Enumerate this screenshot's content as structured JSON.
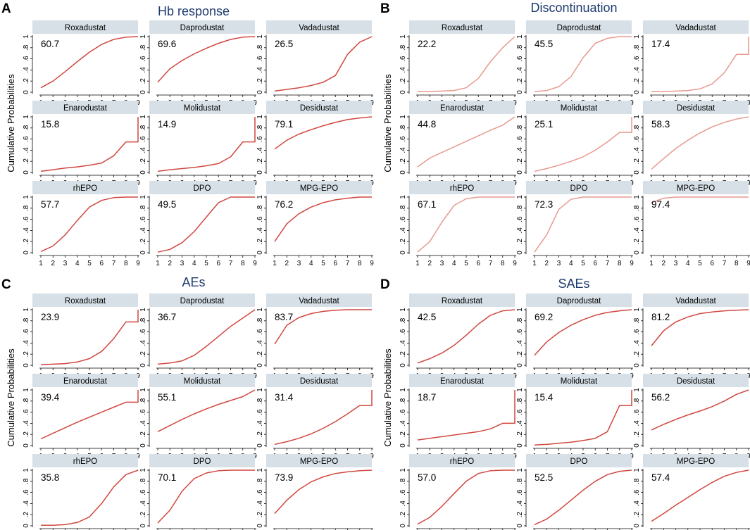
{
  "chart_data": [
    {
      "type": "line",
      "panel_letter": "A",
      "title": "Hb response",
      "ylabel": "Cumulative Probabilities",
      "x": [
        1,
        2,
        3,
        4,
        5,
        6,
        7,
        8,
        9
      ],
      "xticks": [
        "1",
        "2",
        "3",
        "4",
        "5",
        "6",
        "7",
        "8",
        "9"
      ],
      "yticks": [
        "0",
        ".2",
        ".4",
        ".6",
        ".8",
        "1"
      ],
      "ylim": [
        0,
        1
      ],
      "line_color": "#d0473f",
      "series": [
        {
          "name": "Roxadustat",
          "sucra": "60.7",
          "values": [
            0.08,
            0.2,
            0.37,
            0.55,
            0.72,
            0.86,
            0.95,
            0.99,
            1.0
          ]
        },
        {
          "name": "Daprodustat",
          "sucra": "69.6",
          "values": [
            0.18,
            0.42,
            0.57,
            0.69,
            0.79,
            0.88,
            0.95,
            0.99,
            1.0
          ]
        },
        {
          "name": "Vadadustat",
          "sucra": "26.5",
          "values": [
            0.02,
            0.05,
            0.08,
            0.12,
            0.18,
            0.3,
            0.68,
            0.9,
            1.0
          ]
        },
        {
          "name": "Enarodustat",
          "sucra": "15.8",
          "values": [
            0.02,
            0.05,
            0.08,
            0.1,
            0.13,
            0.17,
            0.3,
            0.55,
            1.0
          ]
        },
        {
          "name": "Molidustat",
          "sucra": "14.9",
          "values": [
            0.02,
            0.05,
            0.07,
            0.09,
            0.12,
            0.16,
            0.28,
            0.55,
            1.0
          ]
        },
        {
          "name": "Desidustat",
          "sucra": "79.1",
          "values": [
            0.42,
            0.58,
            0.69,
            0.77,
            0.84,
            0.9,
            0.95,
            0.98,
            1.0
          ]
        },
        {
          "name": "rhEPO",
          "sucra": "57.7",
          "values": [
            0.02,
            0.12,
            0.32,
            0.58,
            0.82,
            0.94,
            0.99,
            1.0,
            1.0
          ]
        },
        {
          "name": "DPO",
          "sucra": "49.5",
          "values": [
            0.01,
            0.06,
            0.18,
            0.38,
            0.64,
            0.9,
            1.0,
            1.0,
            1.0
          ]
        },
        {
          "name": "MPG-EPO",
          "sucra": "76.2",
          "values": [
            0.2,
            0.52,
            0.7,
            0.82,
            0.9,
            0.95,
            0.98,
            1.0,
            1.0
          ]
        }
      ]
    },
    {
      "type": "line",
      "panel_letter": "B",
      "title": "Discontinuation",
      "ylabel": "Cumulative Probabilities",
      "x": [
        1,
        2,
        3,
        4,
        5,
        6,
        7,
        8,
        9
      ],
      "xticks": [
        "1",
        "2",
        "3",
        "4",
        "5",
        "6",
        "7",
        "8",
        "9"
      ],
      "yticks": [
        "0",
        ".2",
        ".4",
        ".6",
        ".8",
        "1"
      ],
      "ylim": [
        0,
        1
      ],
      "line_color": "#e79a8f",
      "series": [
        {
          "name": "Roxadustat",
          "sucra": "22.2",
          "values": [
            0.01,
            0.01,
            0.02,
            0.03,
            0.08,
            0.25,
            0.55,
            0.8,
            1.0
          ]
        },
        {
          "name": "Daprodustat",
          "sucra": "45.5",
          "values": [
            0.01,
            0.03,
            0.1,
            0.28,
            0.62,
            0.88,
            0.97,
            1.0,
            1.0
          ]
        },
        {
          "name": "Vadadustat",
          "sucra": "17.4",
          "values": [
            0.01,
            0.01,
            0.02,
            0.03,
            0.06,
            0.15,
            0.35,
            0.68,
            1.0
          ]
        },
        {
          "name": "Enarodustat",
          "sucra": "44.8",
          "values": [
            0.1,
            0.26,
            0.36,
            0.46,
            0.56,
            0.66,
            0.76,
            0.85,
            1.0
          ]
        },
        {
          "name": "Molidustat",
          "sucra": "25.1",
          "values": [
            0.02,
            0.07,
            0.13,
            0.2,
            0.28,
            0.4,
            0.55,
            0.72,
            1.0
          ]
        },
        {
          "name": "Desidustat",
          "sucra": "58.3",
          "values": [
            0.06,
            0.25,
            0.43,
            0.58,
            0.71,
            0.82,
            0.9,
            0.96,
            1.0
          ]
        },
        {
          "name": "rhEPO",
          "sucra": "67.1",
          "values": [
            0.01,
            0.2,
            0.55,
            0.85,
            0.97,
            1.0,
            1.0,
            1.0,
            1.0
          ]
        },
        {
          "name": "DPO",
          "sucra": "72.3",
          "values": [
            0.01,
            0.32,
            0.78,
            0.96,
            1.0,
            1.0,
            1.0,
            1.0,
            1.0
          ]
        },
        {
          "name": "MPG-EPO",
          "sucra": "97.4",
          "values": [
            0.9,
            0.98,
            1.0,
            1.0,
            1.0,
            1.0,
            1.0,
            1.0,
            1.0
          ]
        }
      ]
    },
    {
      "type": "line",
      "panel_letter": "C",
      "title": "AEs",
      "ylabel": "Cumulative Probabilities",
      "x": [
        1,
        2,
        3,
        4,
        5,
        6,
        7,
        8,
        9
      ],
      "xticks": [
        "1",
        "2",
        "3",
        "4",
        "5",
        "6",
        "7",
        "8",
        "9"
      ],
      "yticks": [
        "0",
        ".2",
        ".4",
        ".6",
        ".8",
        "1"
      ],
      "ylim": [
        0,
        1
      ],
      "line_color": "#d0473f",
      "series": [
        {
          "name": "Roxadustat",
          "sucra": "23.9",
          "values": [
            0.01,
            0.02,
            0.03,
            0.06,
            0.12,
            0.25,
            0.48,
            0.78,
            1.0
          ]
        },
        {
          "name": "Daprodustat",
          "sucra": "36.7",
          "values": [
            0.02,
            0.04,
            0.08,
            0.18,
            0.34,
            0.52,
            0.7,
            0.85,
            1.0
          ]
        },
        {
          "name": "Vadadustat",
          "sucra": "83.7",
          "values": [
            0.38,
            0.72,
            0.86,
            0.93,
            0.97,
            0.99,
            1.0,
            1.0,
            1.0
          ]
        },
        {
          "name": "Enarodustat",
          "sucra": "39.4",
          "values": [
            0.12,
            0.22,
            0.32,
            0.42,
            0.51,
            0.6,
            0.69,
            0.78,
            1.0
          ]
        },
        {
          "name": "Molidustat",
          "sucra": "55.1",
          "values": [
            0.25,
            0.36,
            0.47,
            0.57,
            0.66,
            0.74,
            0.81,
            0.88,
            1.0
          ]
        },
        {
          "name": "Desidustat",
          "sucra": "31.4",
          "values": [
            0.02,
            0.07,
            0.13,
            0.21,
            0.31,
            0.43,
            0.57,
            0.72,
            1.0
          ]
        },
        {
          "name": "rhEPO",
          "sucra": "35.8",
          "values": [
            0.01,
            0.01,
            0.02,
            0.06,
            0.16,
            0.4,
            0.7,
            0.92,
            1.0
          ]
        },
        {
          "name": "DPO",
          "sucra": "70.1",
          "values": [
            0.05,
            0.28,
            0.62,
            0.85,
            0.95,
            0.99,
            1.0,
            1.0,
            1.0
          ]
        },
        {
          "name": "MPG-EPO",
          "sucra": "73.9",
          "values": [
            0.22,
            0.46,
            0.65,
            0.79,
            0.88,
            0.94,
            0.97,
            0.99,
            1.0
          ]
        }
      ]
    },
    {
      "type": "line",
      "panel_letter": "D",
      "title": "SAEs",
      "ylabel": "Cumulative Probabilities",
      "x": [
        1,
        2,
        3,
        4,
        5,
        6,
        7,
        8,
        9
      ],
      "xticks": [
        "1",
        "2",
        "3",
        "4",
        "5",
        "6",
        "7",
        "8",
        "9"
      ],
      "yticks": [
        "0",
        ".2",
        ".4",
        ".6",
        ".8",
        "1"
      ],
      "ylim": [
        0,
        1
      ],
      "line_color": "#d0473f",
      "series": [
        {
          "name": "Roxadustat",
          "sucra": "42.5",
          "values": [
            0.04,
            0.12,
            0.22,
            0.36,
            0.54,
            0.74,
            0.9,
            0.98,
            1.0
          ]
        },
        {
          "name": "Daprodustat",
          "sucra": "69.2",
          "values": [
            0.18,
            0.42,
            0.59,
            0.72,
            0.82,
            0.9,
            0.95,
            0.98,
            1.0
          ]
        },
        {
          "name": "Vadadustat",
          "sucra": "81.2",
          "values": [
            0.35,
            0.62,
            0.78,
            0.87,
            0.93,
            0.96,
            0.98,
            0.99,
            1.0
          ]
        },
        {
          "name": "Enarodustat",
          "sucra": "18.7",
          "values": [
            0.1,
            0.13,
            0.16,
            0.19,
            0.22,
            0.25,
            0.3,
            0.4,
            1.0
          ]
        },
        {
          "name": "Molidustat",
          "sucra": "15.4",
          "values": [
            0.01,
            0.02,
            0.04,
            0.06,
            0.09,
            0.13,
            0.25,
            0.72,
            1.0
          ]
        },
        {
          "name": "Desidustat",
          "sucra": "56.2",
          "values": [
            0.28,
            0.38,
            0.47,
            0.55,
            0.62,
            0.7,
            0.8,
            0.92,
            1.0
          ]
        },
        {
          "name": "rhEPO",
          "sucra": "57.0",
          "values": [
            0.03,
            0.15,
            0.35,
            0.58,
            0.8,
            0.94,
            0.99,
            1.0,
            1.0
          ]
        },
        {
          "name": "DPO",
          "sucra": "52.5",
          "values": [
            0.02,
            0.12,
            0.28,
            0.46,
            0.64,
            0.8,
            0.92,
            0.98,
            1.0
          ]
        },
        {
          "name": "MPG-EPO",
          "sucra": "57.4",
          "values": [
            0.08,
            0.22,
            0.37,
            0.51,
            0.65,
            0.78,
            0.89,
            0.96,
            1.0
          ]
        }
      ]
    }
  ]
}
